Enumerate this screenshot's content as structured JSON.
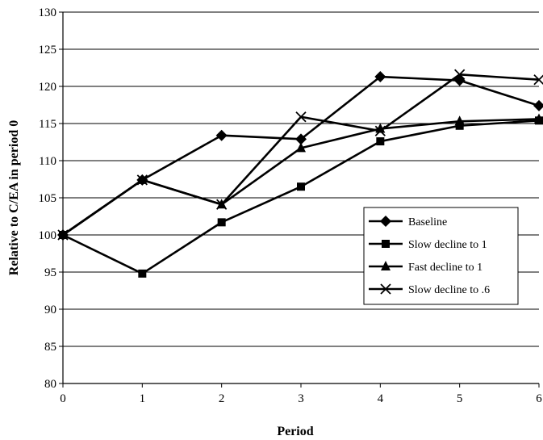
{
  "chart_data": {
    "type": "line",
    "title": "",
    "xlabel": "Period",
    "ylabel": "Relative to C/EA in period 0",
    "x": [
      0,
      1,
      2,
      3,
      4,
      5,
      6
    ],
    "xlim": [
      0,
      6
    ],
    "ylim": [
      80,
      130
    ],
    "yticks": [
      80,
      85,
      90,
      95,
      100,
      105,
      110,
      115,
      120,
      125,
      130
    ],
    "xticks": [
      0,
      1,
      2,
      3,
      4,
      5,
      6
    ],
    "grid": "horizontal",
    "legend_position": "right",
    "series": [
      {
        "name": "Baseline",
        "marker": "diamond",
        "values": [
          100,
          107.4,
          113.4,
          112.9,
          121.3,
          120.8,
          117.4
        ]
      },
      {
        "name": "Slow decline to 1",
        "marker": "square",
        "values": [
          100,
          94.8,
          101.7,
          106.5,
          112.6,
          114.7,
          115.4
        ]
      },
      {
        "name": "Fast decline to 1",
        "marker": "triangle",
        "values": [
          100,
          107.4,
          104.1,
          111.7,
          114.3,
          115.3,
          115.6
        ]
      },
      {
        "name": "Slow decline to .6",
        "marker": "x",
        "values": [
          100,
          107.4,
          104.1,
          115.9,
          114.0,
          121.6,
          120.9
        ]
      }
    ],
    "colors": {
      "line": "#000000",
      "grid": "#000000",
      "background": "#ffffff"
    }
  }
}
